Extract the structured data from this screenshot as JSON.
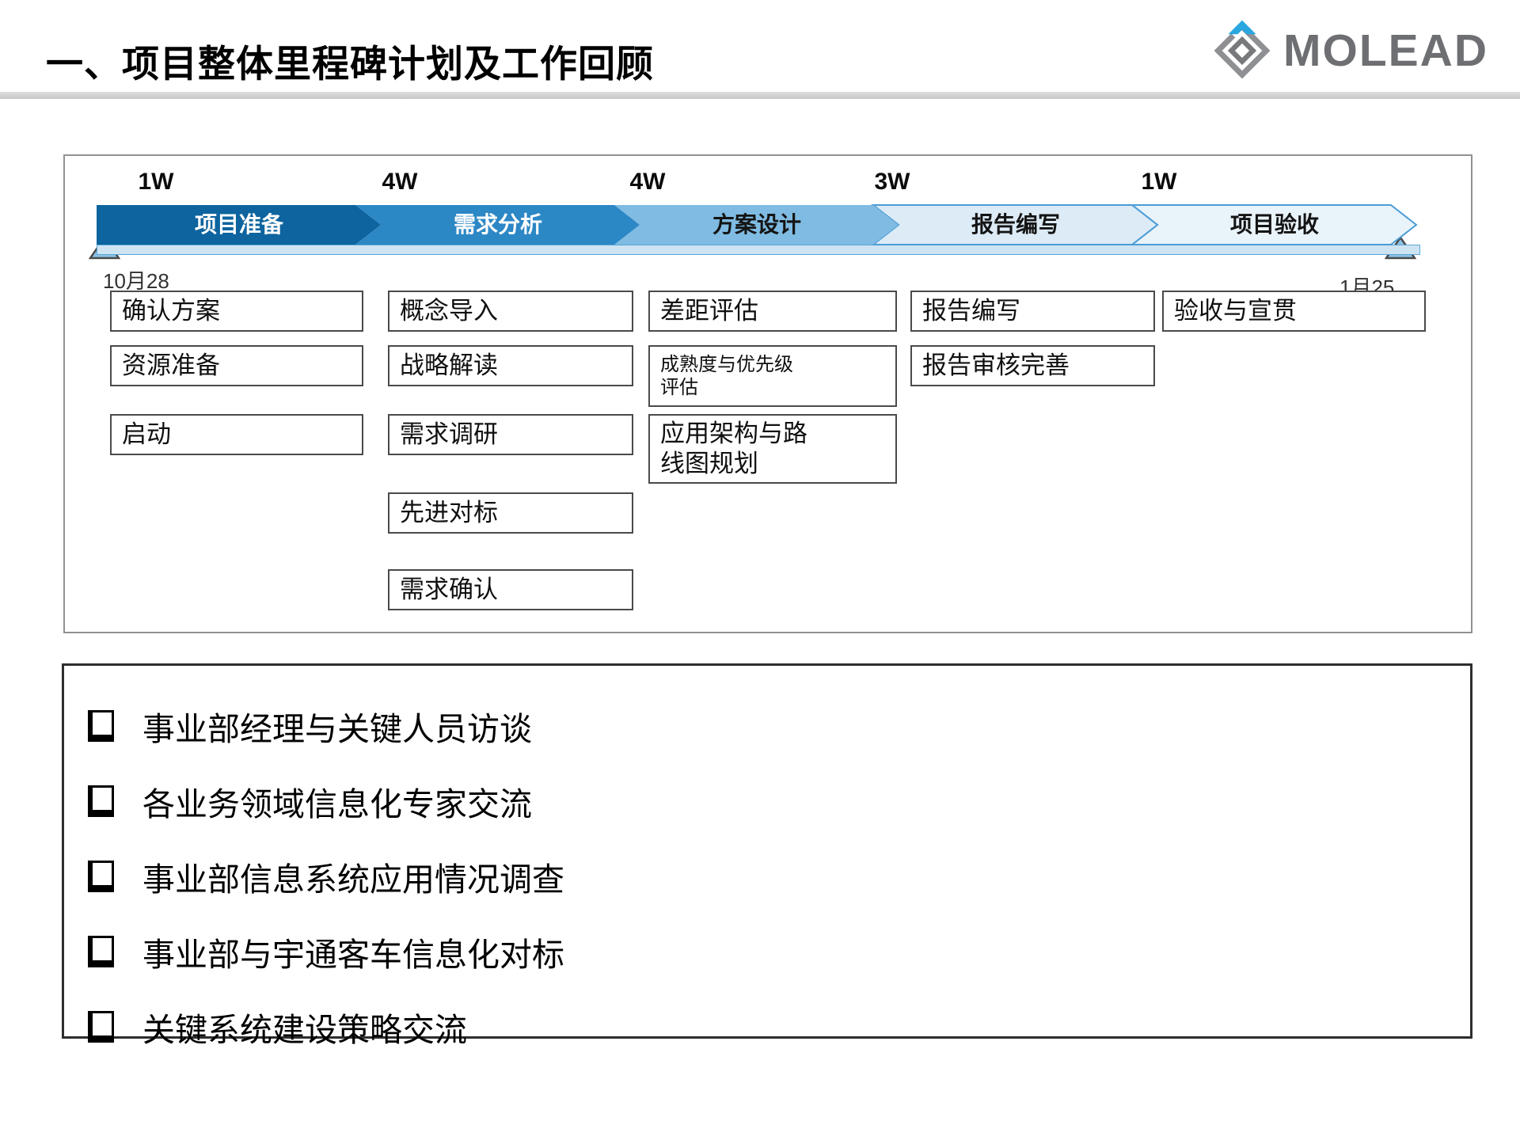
{
  "slide": {
    "title": "一、项目整体里程碑计划及工作回顾",
    "logo_text": "MOLEAD"
  },
  "timeline": {
    "start_date": "10月28",
    "end_date": "1月25",
    "phases": [
      {
        "label": "项目准备",
        "duration": "1W",
        "fill": "#0d649e",
        "border": "",
        "text_color": "#ffffff"
      },
      {
        "label": "需求分析",
        "duration": "4W",
        "fill": "#2c87c5",
        "border": "",
        "text_color": "#ffffff"
      },
      {
        "label": "方案设计",
        "duration": "4W",
        "fill": "#7fbbe2",
        "border": "",
        "text_color": "#141414"
      },
      {
        "label": "报告编写",
        "duration": "3W",
        "fill": "#dcebf6",
        "border": "#4a9cd6",
        "text_color": "#141414"
      },
      {
        "label": "项目验收",
        "duration": "1W",
        "fill": "#e9f3fa",
        "border": "#4a9cd6",
        "text_color": "#141414"
      }
    ],
    "strip_color": "#cfe4f2",
    "strip_border": "#5aa7d8",
    "marker_fill": "#8cc1e6",
    "task_columns": [
      [
        "确认方案",
        "资源准备",
        "启动"
      ],
      [
        "概念导入",
        "战略解读",
        "需求调研",
        "先进对标",
        "需求确认"
      ],
      [
        "差距评估",
        "成熟度与优先级\n评估",
        "应用架构与路\n线图规划"
      ],
      [
        "报告编写",
        "报告审核完善"
      ],
      [
        "验收与宣贯"
      ]
    ]
  },
  "checklist": {
    "items": [
      "事业部经理与关键人员访谈",
      "各业务领域信息化专家交流",
      "事业部信息系统应用情况调查",
      "事业部与宇通客车信息化对标",
      "关键系统建设策略交流"
    ]
  }
}
